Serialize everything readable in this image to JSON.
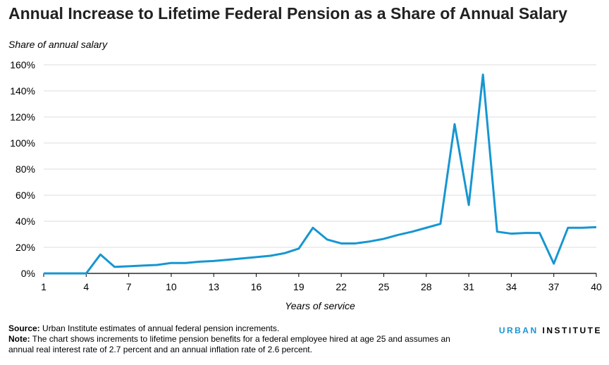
{
  "title": "Annual Increase to Lifetime Federal Pension as a Share of Annual Salary",
  "chart_data": {
    "type": "line",
    "ylabel": "Share of annual salary",
    "xlabel": "Years of service",
    "ylim": [
      0,
      160
    ],
    "xlim": [
      1,
      40
    ],
    "y_ticks": [
      "0%",
      "20%",
      "40%",
      "60%",
      "80%",
      "100%",
      "120%",
      "140%",
      "160%"
    ],
    "y_tick_values": [
      0,
      20,
      40,
      60,
      80,
      100,
      120,
      140,
      160
    ],
    "x_ticks": [
      "1",
      "4",
      "7",
      "10",
      "13",
      "16",
      "19",
      "22",
      "25",
      "28",
      "31",
      "34",
      "37",
      "40"
    ],
    "x_tick_values": [
      1,
      4,
      7,
      10,
      13,
      16,
      19,
      22,
      25,
      28,
      31,
      34,
      37,
      40
    ],
    "grid": true,
    "color": "#1696d2",
    "x": [
      1,
      2,
      3,
      4,
      5,
      6,
      7,
      8,
      9,
      10,
      11,
      12,
      13,
      14,
      15,
      16,
      17,
      18,
      19,
      20,
      21,
      22,
      23,
      24,
      25,
      26,
      27,
      28,
      29,
      30,
      31,
      32,
      33,
      34,
      35,
      36,
      37,
      38,
      39,
      40
    ],
    "values": [
      0,
      0,
      0,
      0,
      14.5,
      5,
      5.5,
      6,
      6.5,
      8,
      8,
      9,
      9.5,
      10.5,
      11.5,
      12.5,
      13.5,
      15.5,
      19,
      35,
      26,
      23,
      23,
      24.5,
      26.5,
      29.5,
      32,
      35,
      38,
      114.5,
      52.5,
      152.5,
      32,
      30.5,
      31,
      31,
      7.5,
      35,
      35,
      35.5
    ]
  },
  "footer": {
    "source_label": "Source:",
    "source_text": " Urban Institute estimates of annual federal pension increments.",
    "note_label": "Note:",
    "note_text": " The chart shows increments to lifetime pension benefits for a federal employee hired at age 25 and assumes an annual real interest rate of 2.7 percent and an annual inflation rate of 2.6 percent."
  },
  "brand": {
    "part1": "URBAN",
    "part2": "INSTITUTE"
  }
}
